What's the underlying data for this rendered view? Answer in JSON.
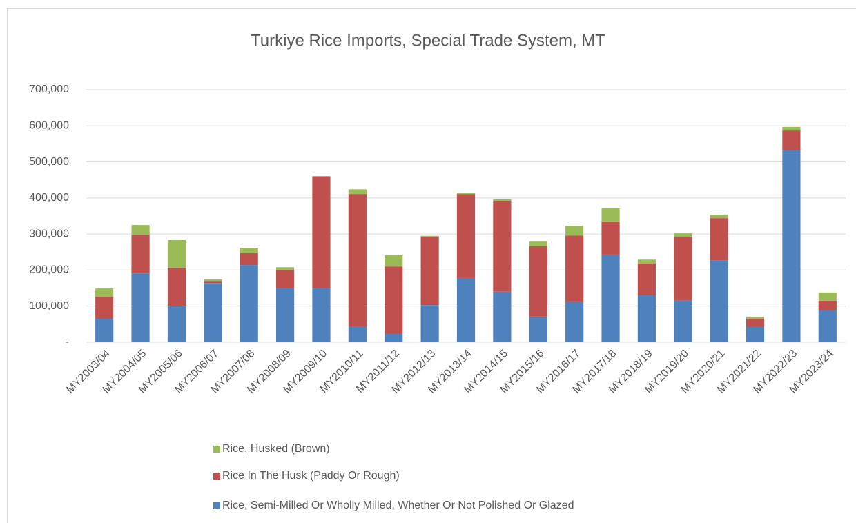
{
  "chart_data": {
    "type": "stacked_bar",
    "title": "Turkiye Rice Imports, Special Trade System, MT",
    "categories": [
      "MY2003/04",
      "MY2004/05",
      "MY2005/06",
      "MY2006/07",
      "MY2007/08",
      "MY2008/09",
      "MY2009/10",
      "MY2010/11",
      "MY2011/12",
      "MY2012/13",
      "MY2013/14",
      "MY2014/15",
      "MY2015/16",
      "MY2016/17",
      "MY2017/18",
      "MY2018/19",
      "MY2019/20",
      "MY2020/21",
      "MY2021/22",
      "MY2022/23",
      "MY2023/24"
    ],
    "series": [
      {
        "name": "Rice, Semi-Milled Or Wholly Milled, Whether Or Not Polished Or Glazed",
        "color": "#4f81bd",
        "values": [
          65000,
          191000,
          101000,
          164000,
          214000,
          151000,
          151000,
          44000,
          23000,
          103000,
          178000,
          140000,
          71000,
          113000,
          243000,
          130000,
          115000,
          226000,
          42000,
          532000,
          88000
        ]
      },
      {
        "name": "Rice In The Husk (Paddy Or Rough)",
        "color": "#c0504d",
        "values": [
          61000,
          107000,
          105000,
          6000,
          33000,
          50000,
          308000,
          367000,
          187000,
          190000,
          233000,
          252000,
          195000,
          183000,
          90000,
          88000,
          176000,
          118000,
          23000,
          55000,
          27000
        ]
      },
      {
        "name": "Rice, Husked (Brown)",
        "color": "#9bbb59",
        "values": [
          23000,
          27000,
          77000,
          4000,
          15000,
          7000,
          2000,
          13000,
          31000,
          2000,
          2000,
          4000,
          13000,
          27000,
          38000,
          11000,
          11000,
          10000,
          6000,
          10000,
          23000
        ]
      }
    ],
    "ylim": [
      0,
      700000
    ],
    "yticks": [
      {
        "value": 0,
        "label": "-"
      },
      {
        "value": 100000,
        "label": "100,000"
      },
      {
        "value": 200000,
        "label": "200,000"
      },
      {
        "value": 300000,
        "label": "300,000"
      },
      {
        "value": 400000,
        "label": "400,000"
      },
      {
        "value": 500000,
        "label": "500,000"
      },
      {
        "value": 600000,
        "label": "600,000"
      },
      {
        "value": 700000,
        "label": "700,000"
      }
    ],
    "grid": true
  }
}
